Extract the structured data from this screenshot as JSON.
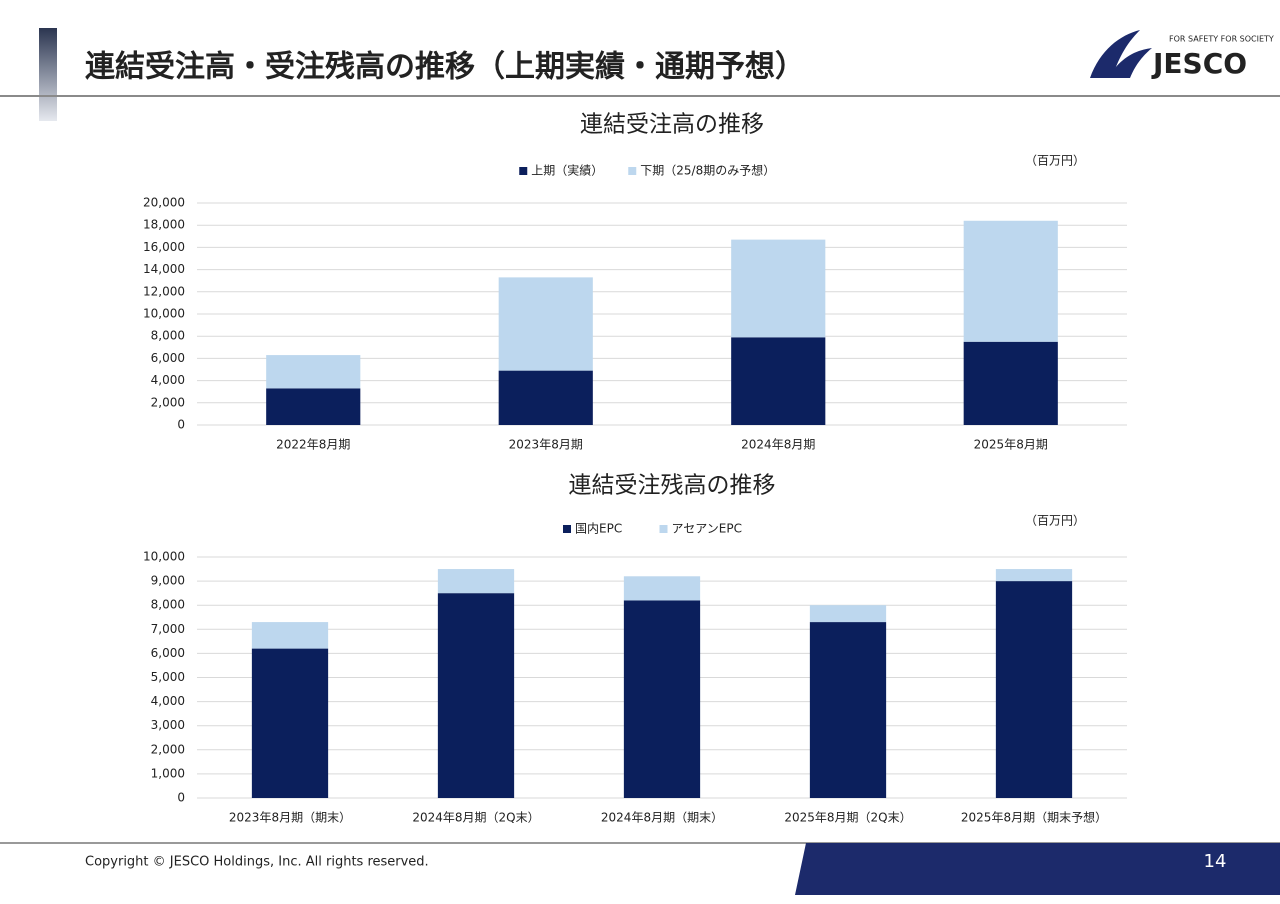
{
  "header": {
    "title": "連結受注高・受注残高の推移（上期実績・通期予想）",
    "logo": "JESCO",
    "tagline": "FOR SAFETY FOR SOCIETY"
  },
  "chart_data": [
    {
      "type": "bar",
      "stacked": true,
      "title": "連結受注高の推移",
      "unit": "（百万円）",
      "categories": [
        "2022年8月期",
        "2023年8月期",
        "2024年8月期",
        "2025年8月期"
      ],
      "series": [
        {
          "name": "上期（実績）",
          "color": "#0b1f5c",
          "values": [
            3300,
            4900,
            7900,
            7500
          ]
        },
        {
          "name": "下期（25/8期のみ予想）",
          "color": "#bdd7ee",
          "values": [
            3000,
            8400,
            8800,
            10900
          ]
        }
      ],
      "ylim": [
        0,
        20000
      ],
      "yticks": [
        0,
        {
          "value": 2000,
          "label": "2,000"
        },
        {
          "value": 4000,
          "label": "4,000"
        },
        {
          "value": 6000,
          "label": "6,000"
        },
        {
          "value": 8000,
          "label": "8,000"
        },
        {
          "value": 10000,
          "label": "10,000"
        },
        {
          "value": 12000,
          "label": "12,000"
        },
        {
          "value": 14000,
          "label": "14,000"
        },
        {
          "value": 16000,
          "label": "16,000"
        },
        {
          "value": 18000,
          "label": "18,000"
        },
        {
          "value": 20000,
          "label": "20,000"
        }
      ],
      "grid": true,
      "legend": "top"
    },
    {
      "type": "bar",
      "stacked": true,
      "title": "連結受注残高の推移",
      "unit": "（百万円）",
      "categories": [
        "2023年8月期（期末）",
        "2024年8月期（2Q末）",
        "2024年8月期（期末）",
        "2025年8月期（2Q末）",
        "2025年8月期（期末予想）"
      ],
      "series": [
        {
          "name": "国内EPC",
          "color": "#0b1f5c",
          "values": [
            6200,
            8500,
            8200,
            7300,
            9000
          ]
        },
        {
          "name": "アセアンEPC",
          "color": "#bdd7ee",
          "values": [
            1100,
            1000,
            1000,
            700,
            500
          ]
        }
      ],
      "ylim": [
        0,
        10000
      ],
      "yticks": [
        0,
        {
          "value": 1000,
          "label": "1,000"
        },
        {
          "value": 2000,
          "label": "2,000"
        },
        {
          "value": 3000,
          "label": "3,000"
        },
        {
          "value": 4000,
          "label": "4,000"
        },
        {
          "value": 5000,
          "label": "5,000"
        },
        {
          "value": 6000,
          "label": "6,000"
        },
        {
          "value": 7000,
          "label": "7,000"
        },
        {
          "value": 8000,
          "label": "8,000"
        },
        {
          "value": 9000,
          "label": "9,000"
        },
        {
          "value": 10000,
          "label": "10,000"
        }
      ],
      "grid": true,
      "legend": "top"
    }
  ],
  "footer": {
    "copyright": "Copyright © JESCO Holdings, Inc.  All rights reserved.",
    "page": "14"
  }
}
